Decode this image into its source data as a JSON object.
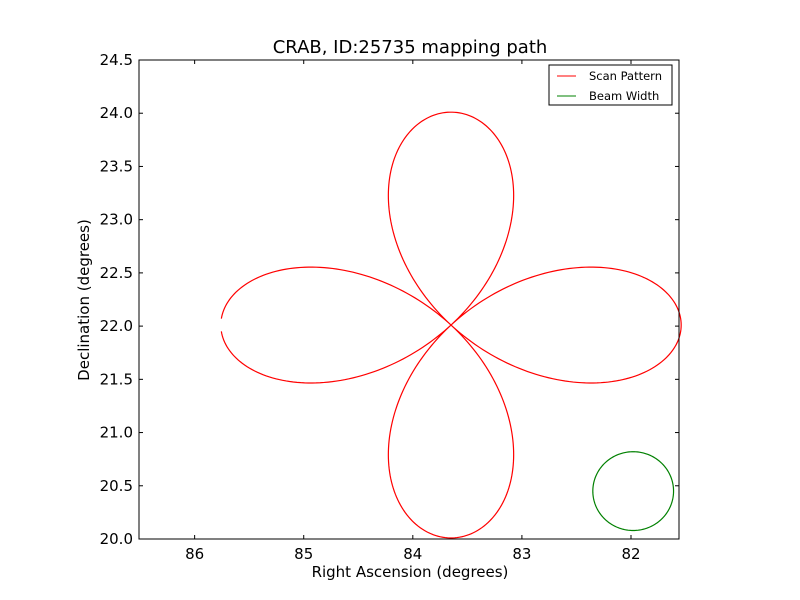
{
  "chart_data": {
    "type": "line",
    "title": "CRAB, ID:25735 mapping path",
    "xlabel": "Right Ascension (degrees)",
    "ylabel": "Declination (degrees)",
    "xlim": [
      86.51,
      81.56
    ],
    "ylim": [
      20.0,
      24.5
    ],
    "x_inverted": true,
    "xticks": [
      "86",
      "85",
      "84",
      "83",
      "82"
    ],
    "xtick_values": [
      86,
      85,
      84,
      83,
      82
    ],
    "yticks": [
      "20.0",
      "20.5",
      "21.0",
      "21.5",
      "22.0",
      "22.5",
      "23.0",
      "23.5",
      "24.0",
      "24.5"
    ],
    "ytick_values": [
      20.0,
      20.5,
      21.0,
      21.5,
      22.0,
      22.5,
      23.0,
      23.5,
      24.0,
      24.5
    ],
    "grid": false,
    "legend_position": "top-right",
    "series": [
      {
        "name": "Scan Pattern",
        "color": "#ff0000",
        "shape": "four-petal rose",
        "center_ra": 83.65,
        "center_dec": 22.01,
        "radius_deg": 2.0,
        "ra_scale": 1.055
      },
      {
        "name": "Beam Width",
        "color": "#008000",
        "shape": "circle",
        "center_ra": 81.98,
        "center_dec": 20.45,
        "radius_deg": 0.37,
        "ra_scale": 1.0
      }
    ]
  }
}
